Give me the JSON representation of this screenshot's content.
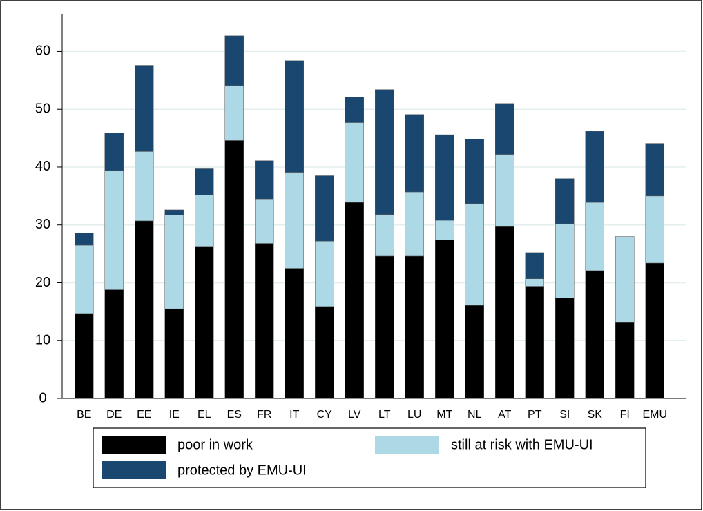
{
  "chart_data": {
    "type": "stacked_bar",
    "categories": [
      "BE",
      "DE",
      "EE",
      "IE",
      "EL",
      "ES",
      "FR",
      "IT",
      "CY",
      "LV",
      "LT",
      "LU",
      "MT",
      "NL",
      "AT",
      "PT",
      "SI",
      "SK",
      "FI",
      "EMU"
    ],
    "series": [
      {
        "name": "poor in work",
        "color": "#000000",
        "values": [
          14.7,
          18.8,
          30.7,
          15.5,
          26.3,
          44.6,
          26.8,
          22.5,
          15.9,
          33.9,
          24.6,
          24.6,
          27.4,
          16.1,
          29.7,
          19.4,
          17.4,
          22.1,
          13.1,
          23.4
        ]
      },
      {
        "name": "still at risk with EMU-UI",
        "color": "#add8e6",
        "values": [
          11.8,
          20.6,
          12.0,
          16.2,
          8.9,
          9.5,
          7.7,
          16.6,
          11.3,
          13.8,
          7.2,
          11.1,
          3.4,
          17.6,
          12.5,
          1.3,
          12.8,
          11.8,
          14.9,
          11.6
        ]
      },
      {
        "name": "protected by EMU-UI",
        "color": "#1a476f",
        "values": [
          2.1,
          6.5,
          14.9,
          0.9,
          4.5,
          8.6,
          6.6,
          19.3,
          11.3,
          4.4,
          21.6,
          13.4,
          14.8,
          11.1,
          8.8,
          4.5,
          7.8,
          12.3,
          0,
          9.1
        ]
      }
    ],
    "ylim": [
      0,
      66.5
    ],
    "yticks": [
      0,
      10,
      20,
      30,
      40,
      50,
      60
    ],
    "grid": true
  }
}
